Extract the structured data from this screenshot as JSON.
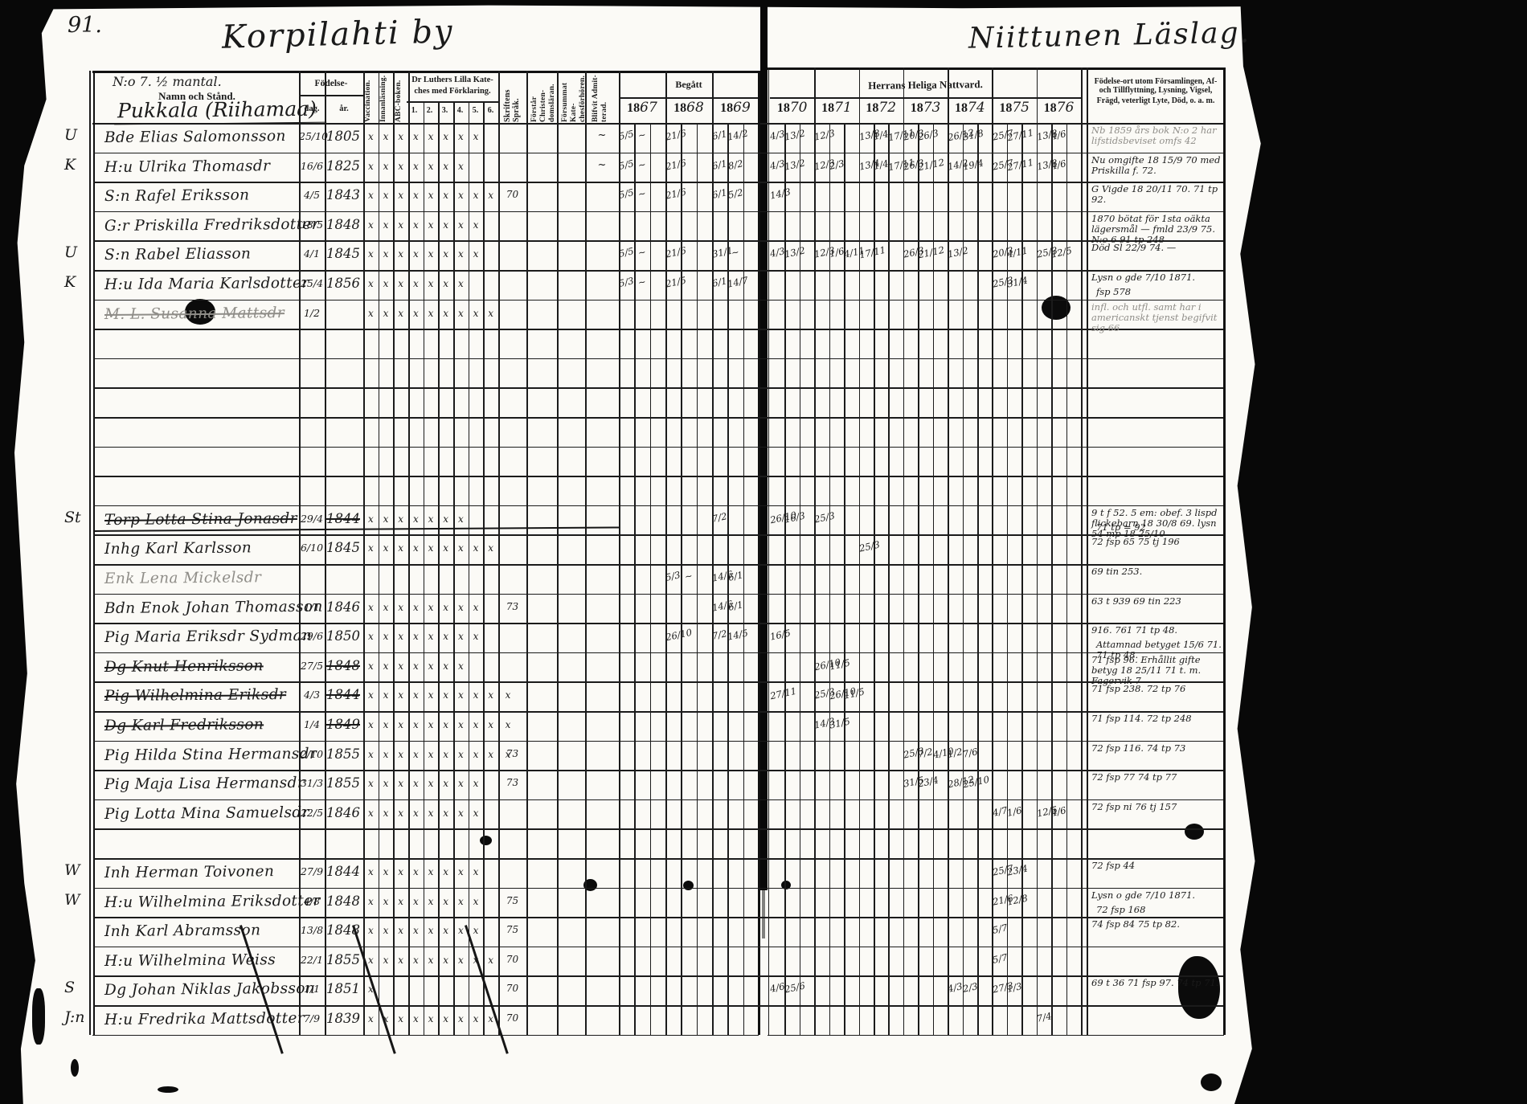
{
  "page": {
    "number": "91.",
    "left_title": "Korpilahti by",
    "right_title": "Niittunen Läslag."
  },
  "headers": {
    "holding": "N:o 7.  ½ mantal.",
    "namn": "Namn och Stånd.",
    "farm": "Pukkala (Riihamaa)",
    "fodelse": "Födelse-",
    "dag": "dag.",
    "ar": "år.",
    "vacc": "Vaccination.",
    "innan": "Innanläsning.",
    "abc": "ABC-boken.",
    "katekes_line1": "Dr Luthers Lilla Kate-",
    "katekes_line2": "ches med Förklaring.",
    "kat_nums": [
      "1.",
      "2.",
      "3.",
      "4.",
      "5.",
      "6."
    ],
    "skrift": "Skriftens Språk.",
    "forstar": "Förstår Christen- domsläran.",
    "forsummat": "Försummat Kate- chesförhören.",
    "blifvit": "Blifvit Admit- terad.",
    "begatt": "Begått",
    "begatt_years": [
      "1867",
      "1868",
      "1869"
    ],
    "nattvard": "Herrans Heliga Nattvard.",
    "nattvard_years": [
      "1870",
      "1871",
      "1872",
      "1873",
      "1874",
      "1875",
      "1876"
    ],
    "notes_line1": "Födelse-ort utom Församlingen, Af- och Tillflyttning, Lysning, Vigsel,",
    "notes_line2": "Frägd, veterligt Lyte, Död, o. a. m."
  },
  "rows": [
    {
      "m": "U",
      "name": "Bde Elias Salomonsson",
      "dag": "25/10",
      "ar": "1805",
      "marks": "xxxxxxxx",
      "adm": "~",
      "y67": "5/5 ~",
      "y68": "21/6",
      "y69": "6/1 14/2",
      "y70": "4/3 13/2",
      "y71": "12/3",
      "y72": "13/8 1/4 17/11",
      "y73": "20/3 26/3",
      "y74": "26/12 31/8",
      "y75": "25/7 27/11",
      "y76": "13/8 4/6",
      "note": "Nb 1859 års bok N:o 2 har lifstidsbeviset omfs 42",
      "faintNote": true
    },
    {
      "m": "K",
      "name": "H:u Ulrika Thomasdr",
      "dag": "16/6",
      "ar": "1825",
      "marks": "xxxxxxx",
      "adm": "~",
      "y67": "5/5 ~",
      "y68": "21/6",
      "y69": "6/1 8/2",
      "y70": "4/3 13/2",
      "y71": "12/3 2/3",
      "y72": "13/4 1/4 17/11",
      "y73": "26/3 21/12",
      "y74": "14/2 19/4",
      "y75": "25/7 27/11",
      "y76": "13/8 4/6",
      "note": "Nu omgifte 18 15/9 70 med Priskilla f. 72."
    },
    {
      "name": "S:n Rafel Eriksson",
      "dag": "4/5",
      "ar": "1843",
      "marks": "xxxxxxxxx",
      "spr": "70",
      "y67": "5/5 ~",
      "y68": "21/6",
      "y69": "6/1 5/2",
      "y70": "14/3",
      "note": "G Vigde 18 20/11 70.  71 tp 92."
    },
    {
      "name": "G:r Priskilla Fredriksdotter",
      "dag": "18/5",
      "ar": "1848",
      "marks": "xxxxxxxx",
      "note": "1870 bötat för 1sta oäkta lägersmål — fmld 23/9 75. N:o 6 91 tp 248"
    },
    {
      "m": "U",
      "name": "S:n Rabel Eliasson",
      "dag": "4/1",
      "ar": "1845",
      "marks": "xxxxxxxx",
      "y67": "5/5 ~",
      "y68": "21/6",
      "y69": "31/1 ~",
      "y70": "4/3 13/2",
      "y71": "12/3 1/6 4/11",
      "y72": "17/11",
      "y73": "26/3 21/12",
      "y74": "13/2",
      "y75": "20/3 4/11",
      "y76": "25/3 12/5",
      "note": "Död Sl 22/9 74. —"
    },
    {
      "m": "K",
      "name": "H:u Ida Maria Karlsdotter",
      "dag": "25/4",
      "ar": "1856",
      "marks": "xxxxxxx",
      "y67": "5/3 ~",
      "y68": "21/5",
      "y69": "6/1 14/7",
      "y75": "25/3 31/4",
      "note": "Lysn o gde 7/10 1871.",
      "note2": "fsp 578"
    },
    {
      "name": "M. L. Susanna Mattsdr",
      "struck": true,
      "faint": true,
      "dag": "1/2",
      "marks": "xxxxxxxxx",
      "note": "infl. och utfl. samt har i americanskt tjenst begifvit sig 66",
      "faintNote": true
    },
    {},
    {},
    {},
    {},
    {},
    {},
    {
      "m": "St",
      "name": "Torp Lotta Stina Jonasdr",
      "struck": true,
      "dag": "29/4",
      "ar": "1844",
      "marks": "xxxxxxx",
      "y69": "7/2",
      "y70": "26/10 16/3",
      "y71": "25/3",
      "note": "9 t f 52. 5 em: obef. 3 lispd flickebarn 18 30/8 69. lysn 54 mp 18 25/10",
      "note2": "71 tp = 92"
    },
    {
      "name": "Inhg Karl Karlsson",
      "dag": "6/10",
      "ar": "1845",
      "marks": "xxxxxxxxx",
      "y72": "25/3",
      "note": "72 fsp 65  75 tj 196"
    },
    {
      "name": "Enk Lena Mickelsdr",
      "faint": true,
      "y68": "5/3 ~",
      "y69": "14/6 6/1",
      "note": "69 tin 253."
    },
    {
      "name": "Bdn Enok Johan Thomasson",
      "dag": "1/1",
      "ar": "1846",
      "marks": "xxxxxxxx",
      "spr": "73",
      "y69": "14/6 6/1",
      "note": "63 t 939    69 tin 223"
    },
    {
      "name": "Pig Maria Eriksdr Sydman",
      "dag": "29/6",
      "ar": "1850",
      "marks": "xxxxxxxx",
      "y68": "26/10",
      "y69": "7/2 14/5",
      "y70": "16/5",
      "note": "916. 761  71 tp 48.",
      "note2": "Attamnad betyget 15/6 71.  71 tp 48."
    },
    {
      "name": "Dg Knut Henriksson",
      "struck": true,
      "dag": "27/5",
      "ar": "1848",
      "marks": "xxxxxxx",
      "y71": "26/10 11/5",
      "note": "71 fsp 96. Erhållit gifte betyg 18 25/11 71 t. m. Fagervik 7"
    },
    {
      "name": "Pig Wilhelmina Eriksdr",
      "struck": true,
      "dag": "4/3",
      "ar": "1844",
      "marks": "xxxxxxxxxx",
      "y70": "27/11",
      "y71": "25/3 26/10 11/5",
      "note": "71 fsp 238. 72 tp 76"
    },
    {
      "name": "Dg Karl Fredriksson",
      "struck": true,
      "dag": "1/4",
      "ar": "1849",
      "marks": "xxxxxxxxxx",
      "y71": "14/3 31/5",
      "note": "71 fsp 114. 72 tp 248"
    },
    {
      "name": "Pig Hilda Stina Hermansdr",
      "dag": "2/10",
      "ar": "1855",
      "marks": "xxxxxxxxxx",
      "spr": "73",
      "y73": "25/3 7/2 4/10",
      "y74": "1/2 7/6",
      "note": "72 fsp 116. 74 tp 73"
    },
    {
      "name": "Pig Maja Lisa Hermansdr",
      "dag": "31/3",
      "ar": "1855",
      "marks": "xxxxxxxx",
      "spr": "73",
      "y73": "31/5 23/4",
      "y74": "28/12 25/10",
      "note": "72 fsp 77  74 tp 77"
    },
    {
      "name": "Pig Lotta Mina Samuelsdr",
      "dag": "22/5",
      "ar": "1846",
      "marks": "xxxxxxxx",
      "y75": "4/7 1/6",
      "y76": "12/5 4/6",
      "note": "72 fsp ni 76 tj 157"
    },
    {},
    {
      "m": "W",
      "name": "Inh Herman Toivonen",
      "dag": "27/9",
      "ar": "1844",
      "marks": "xxxxxxxx",
      "y75": "25/7 23/4",
      "note": "72 fsp 44"
    },
    {
      "m": "W",
      "name": "H:u Wilhelmina Eriksdotter",
      "dag": "4/8",
      "ar": "1848",
      "marks": "xxxxxxxx",
      "spr": "75",
      "y75": "21/6 12/8",
      "note": "Lysn o gde 7/10 1871.",
      "note2": "72 fsp 168"
    },
    {
      "name": "Inh Karl Abramsson",
      "dag": "13/8",
      "ar": "1848",
      "marks": "xxxxxxxx",
      "spr": "75",
      "y75": "5/7",
      "note": "74 fsp 84  75 tp 82."
    },
    {
      "name": "H:u Wilhelmina Weiss",
      "dag": "22/1",
      "ar": "1855",
      "marks": "xxxxxxxxx",
      "spr": "70",
      "y75": "5/7",
      "note": ""
    },
    {
      "m": "S",
      "name": "Dg Johan Niklas Jakobsson",
      "dag": "1/1",
      "ar": "1851",
      "marks": "x",
      "spr": "70",
      "y70": "4/6 25/6",
      "y74": "4/3 2/3",
      "y75": "27/3 1/3",
      "note": "69 t 36  71 fsp 97. 74 tp 71."
    },
    {
      "m": "J:n",
      "name": "H:u Fredrika Mattsdotter",
      "dag": "7/9",
      "ar": "1839",
      "marks": "xxxxxxxxx",
      "spr": "70",
      "y76": "7/4",
      "note": ""
    }
  ]
}
